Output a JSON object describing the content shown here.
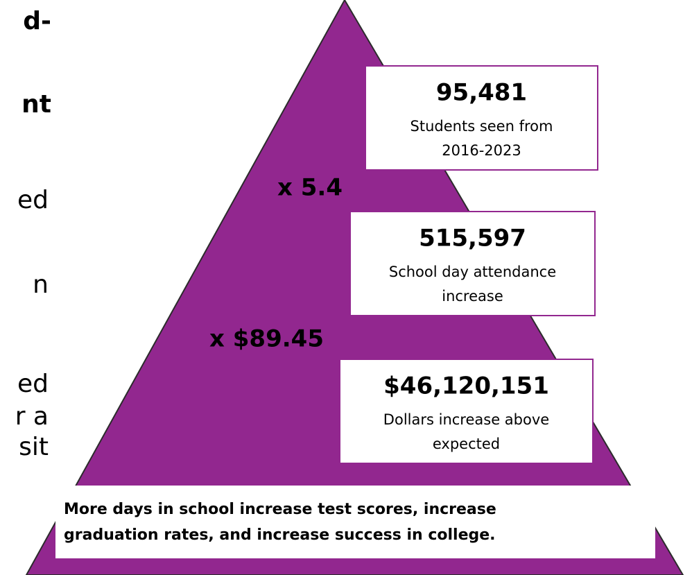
{
  "left_text": {
    "fragments": [
      {
        "text": "d-",
        "bold": true
      },
      {
        "text": "nt",
        "bold": true
      },
      {
        "text": "ed",
        "bold": false
      },
      {
        "text": "n",
        "bold": false
      },
      {
        "text": "ed",
        "bold": false
      },
      {
        "text": "r a",
        "bold": false
      },
      {
        "text": "sit",
        "bold": false
      }
    ]
  },
  "pyramid": {
    "levels": [
      {
        "value": "95,481",
        "lines": [
          "Students seen from",
          "2016-2023"
        ]
      },
      {
        "value": "515,597",
        "lines": [
          "School day attendance",
          "increase"
        ]
      },
      {
        "value": "$46,120,151",
        "lines": [
          "Dollars increase above",
          "expected"
        ]
      }
    ],
    "multipliers": [
      "x 5.4",
      "x $89.45"
    ],
    "footer": [
      "More days in school increase test scores, increase",
      "graduation rates, and increase success in college."
    ]
  }
}
